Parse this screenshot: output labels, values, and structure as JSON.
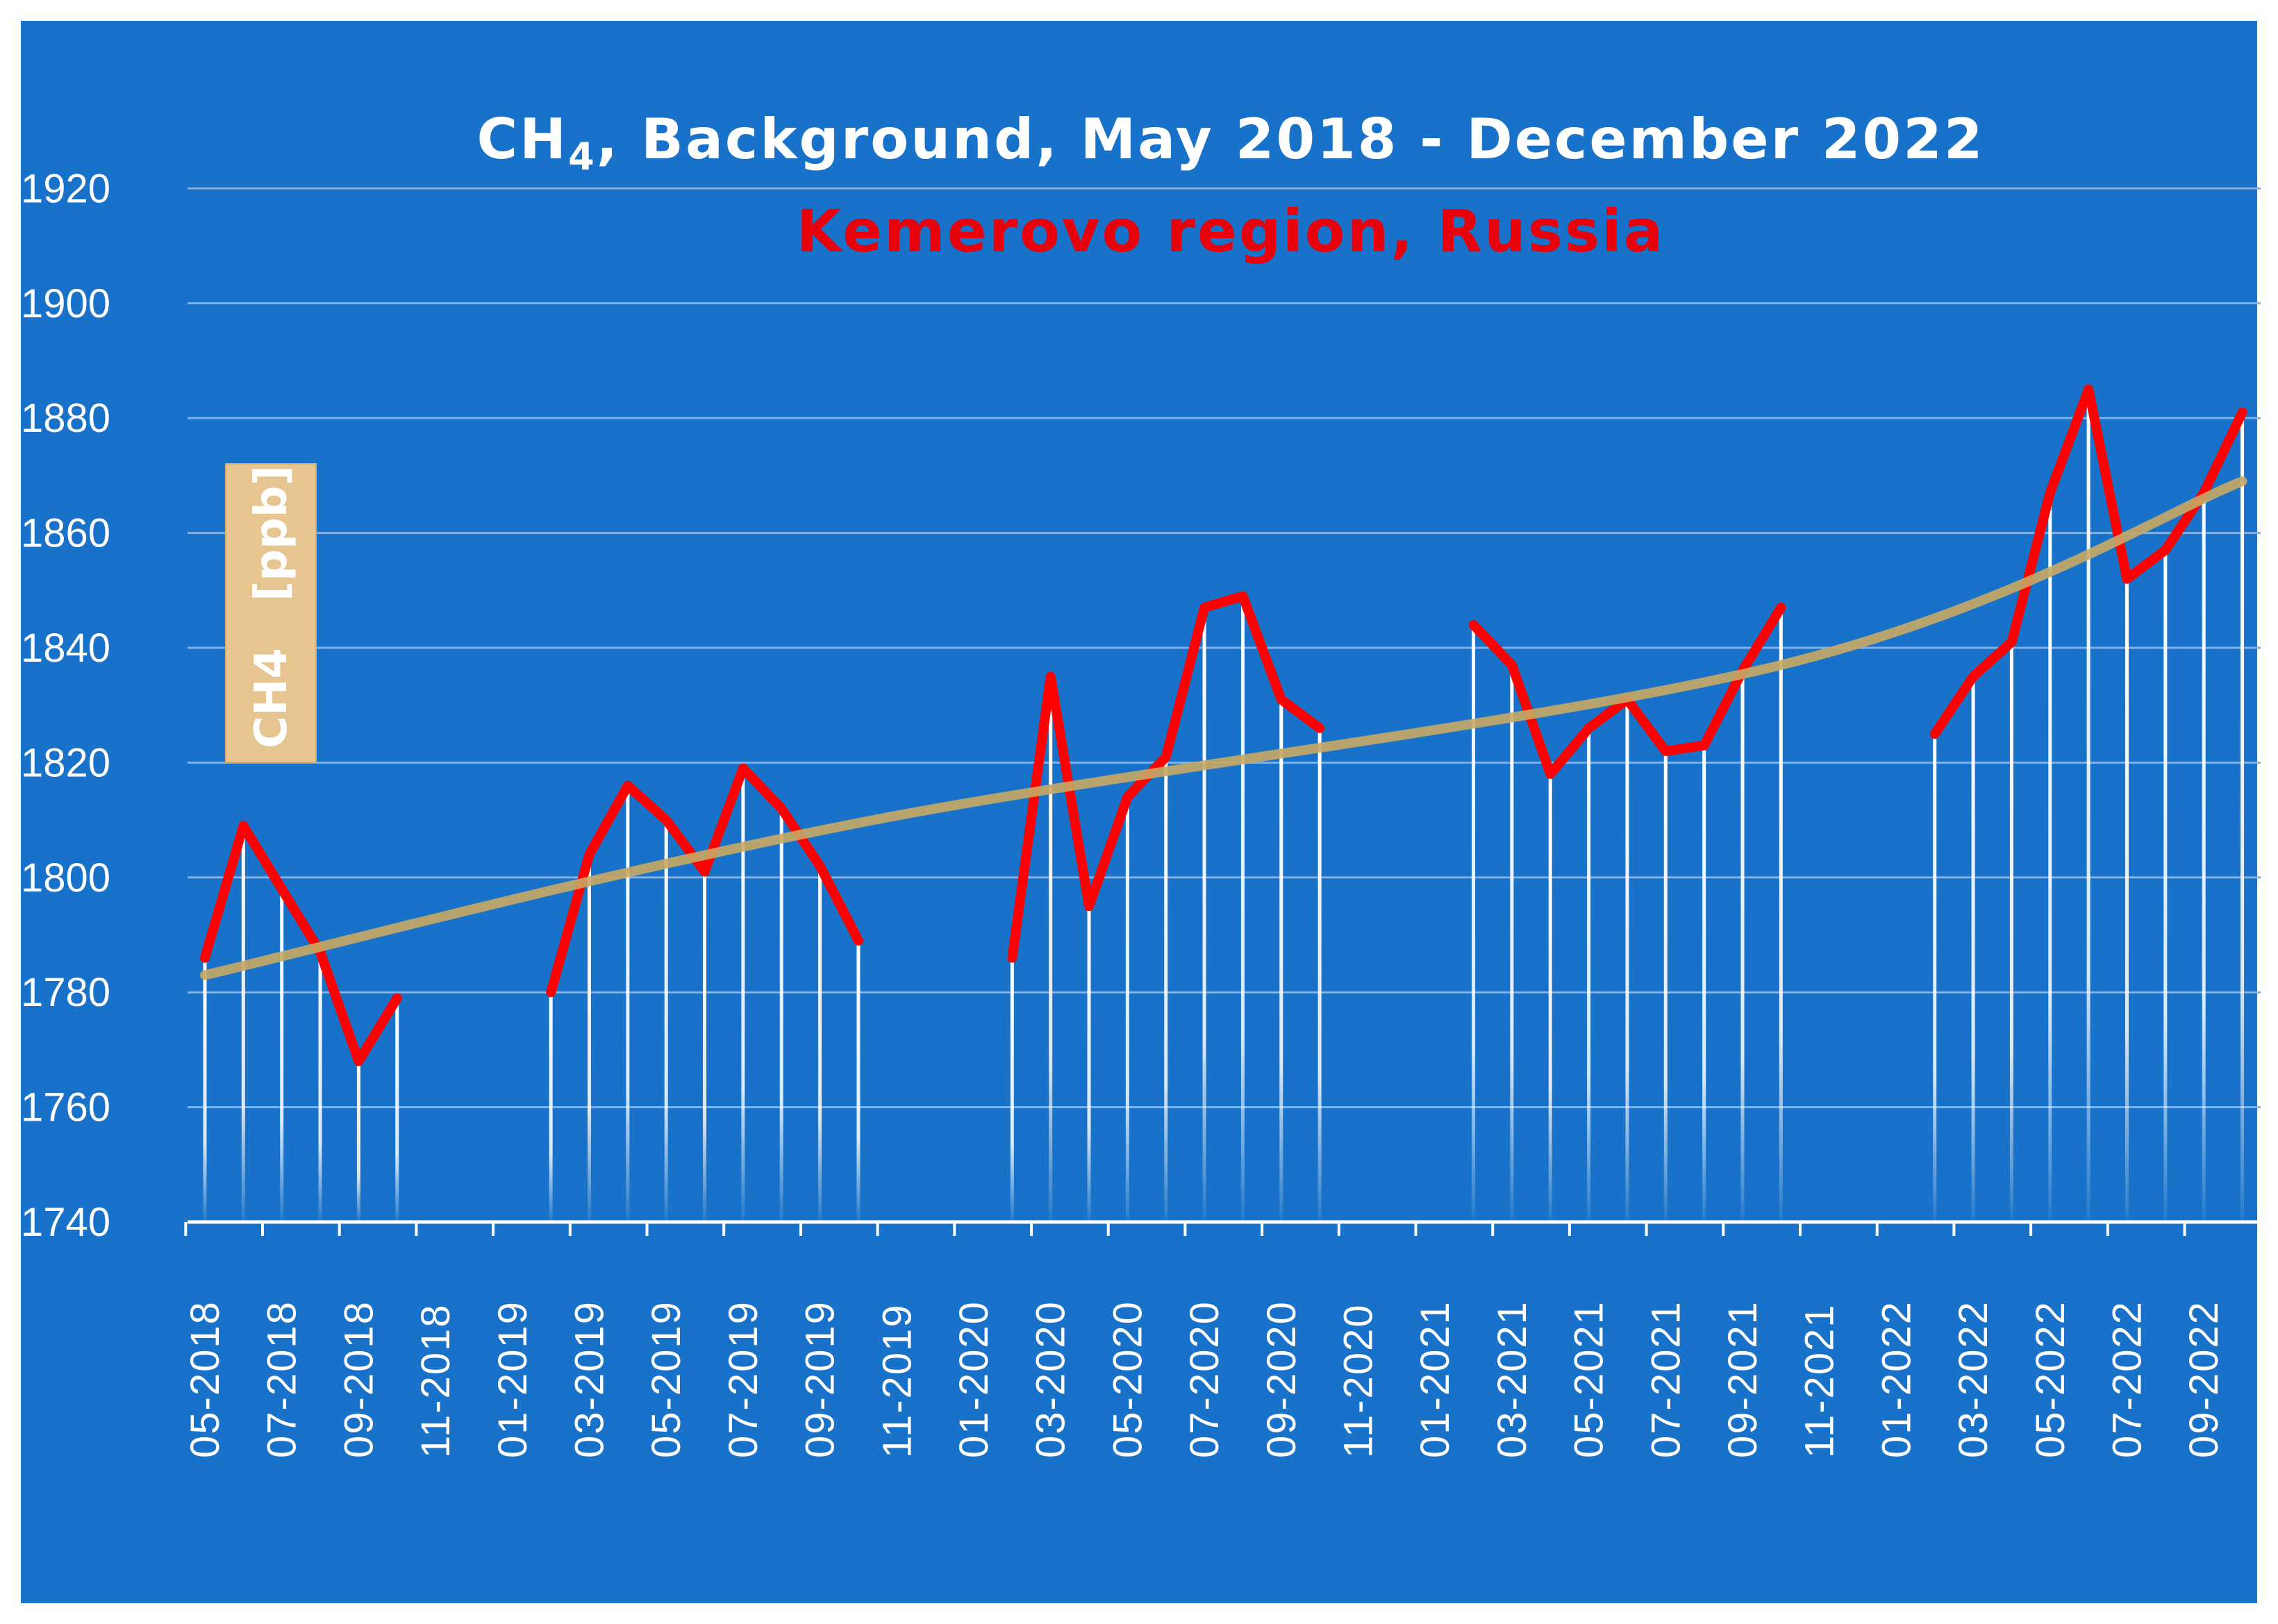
{
  "chart_data": {
    "type": "line",
    "title": {
      "prefix": "CH",
      "sub": "4",
      "rest": ", Background, May 2018 - December 2022"
    },
    "subtitle": "Kemerovo region, Russia",
    "ylabel": "CH4   [ppb]",
    "xlabel": "",
    "ylim": [
      1740,
      1930
    ],
    "yticks": [
      1740,
      1760,
      1780,
      1800,
      1820,
      1840,
      1860,
      1880,
      1900,
      1920
    ],
    "xticks": [
      "05-2018",
      "07-2018",
      "09-2018",
      "11-2018",
      "01-2019",
      "03-2019",
      "05-2019",
      "07-2019",
      "09-2019",
      "11-2019",
      "01-2020",
      "03-2020",
      "05-2020",
      "07-2020",
      "09-2020",
      "11-2020",
      "01-2021",
      "03-2021",
      "05-2021",
      "07-2021",
      "09-2021",
      "11-2021",
      "01-2022",
      "03-2022",
      "05-2022",
      "07-2022",
      "09-2022"
    ],
    "grid": true,
    "legend": "none",
    "colors": {
      "background": "#1872c9",
      "series": "#ff0000",
      "trend": "#c8a864",
      "grid": "#7fb0e6",
      "text": "#ffffff",
      "subtitle": "#e8000b"
    },
    "series": [
      {
        "values": [
          1786,
          1809,
          1798,
          1787,
          1768,
          1779,
          null,
          null,
          null,
          1780,
          1804,
          1816,
          1810,
          1801,
          1819,
          1812,
          1802,
          1789,
          null,
          null,
          null,
          1786,
          1835,
          1795,
          1814,
          1821,
          1847,
          1849,
          1831,
          1826,
          null,
          null,
          null,
          1844,
          1837,
          1818,
          1826,
          1831,
          1822,
          1823,
          1836,
          1847,
          null,
          null,
          null,
          1825,
          1835,
          1841,
          1867,
          1885,
          1852,
          1857,
          1867,
          1881
        ]
      },
      {
        "values": [
          1783,
          1809.5,
          1837,
          1869
        ]
      }
    ],
    "months": [
      "05-2018",
      "06-2018",
      "07-2018",
      "08-2018",
      "09-2018",
      "10-2018",
      "11-2018",
      "12-2018",
      "01-2019",
      "02-2019",
      "03-2019",
      "04-2019",
      "05-2019",
      "06-2019",
      "07-2019",
      "08-2019",
      "09-2019",
      "10-2019",
      "11-2019",
      "12-2019",
      "01-2020",
      "02-2020",
      "03-2020",
      "04-2020",
      "05-2020",
      "06-2020",
      "07-2020",
      "08-2020",
      "09-2020",
      "10-2020",
      "11-2020",
      "12-2020",
      "01-2021",
      "02-2021",
      "03-2021",
      "04-2021",
      "05-2021",
      "06-2021",
      "07-2021",
      "08-2021",
      "09-2021",
      "10-2021",
      "11-2021",
      "12-2021",
      "01-2022",
      "02-2022",
      "03-2022",
      "04-2022",
      "05-2022",
      "06-2022",
      "07-2022",
      "08-2022",
      "09-2022",
      "10-2022"
    ],
    "trend_months": [
      "05-2018",
      "10-2019",
      "10-2021",
      "10-2022"
    ]
  }
}
